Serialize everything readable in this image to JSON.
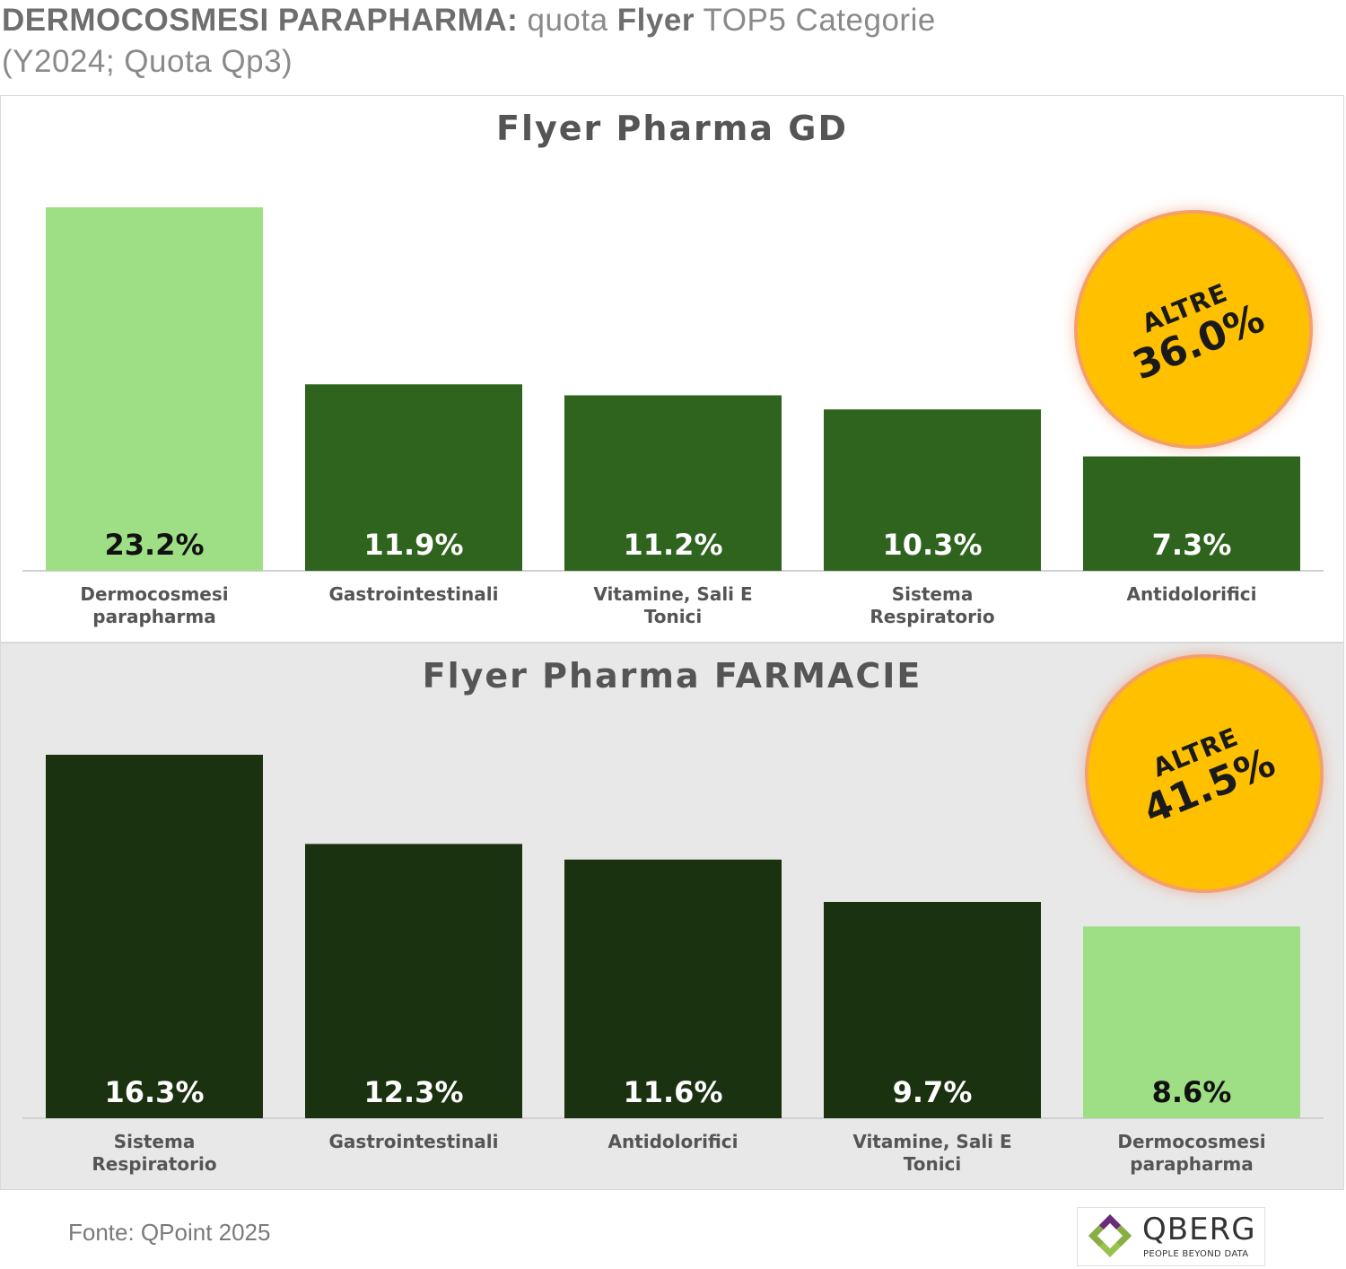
{
  "header": {
    "title_bold": "DERMOCOSMESI PARAPHARMA:",
    "title_mid": " quota ",
    "title_bold2": "Flyer",
    "title_rest": " TOP5 Categorie",
    "subtitle": "(Y2024; Quota Qp3)"
  },
  "colors": {
    "highlight": "#9ede85",
    "gd_bar": "#2e641d",
    "farmacie_bar": "#1a3210",
    "badge": "#ffc000"
  },
  "chart_data": [
    {
      "type": "bar",
      "title": "Flyer Pharma GD",
      "categories": [
        [
          "Dermocosmesi",
          "parapharma"
        ],
        [
          "Gastrointestinali"
        ],
        [
          "Vitamine, Sali E",
          "Tonici"
        ],
        [
          "Sistema",
          "Respiratorio"
        ],
        [
          "Antidolorifici"
        ]
      ],
      "values": [
        23.2,
        11.9,
        11.2,
        10.3,
        7.3
      ],
      "value_labels": [
        "23.2%",
        "11.9%",
        "11.2%",
        "10.3%",
        "7.3%"
      ],
      "highlight_index": 0,
      "ylim": [
        0,
        23.2
      ],
      "badge": {
        "label": "ALTRE",
        "value": "36.0%"
      }
    },
    {
      "type": "bar",
      "title": "Flyer Pharma FARMACIE",
      "categories": [
        [
          "Sistema",
          "Respiratorio"
        ],
        [
          "Gastrointestinali"
        ],
        [
          "Antidolorifici"
        ],
        [
          "Vitamine, Sali E",
          "Tonici"
        ],
        [
          "Dermocosmesi",
          "parapharma"
        ]
      ],
      "values": [
        16.3,
        12.3,
        11.6,
        9.7,
        8.6
      ],
      "value_labels": [
        "16.3%",
        "12.3%",
        "11.6%",
        "9.7%",
        "8.6%"
      ],
      "highlight_index": 4,
      "ylim": [
        0,
        16.3
      ],
      "badge": {
        "label": "ALTRE",
        "value": "41.5%"
      }
    }
  ],
  "footer": {
    "source": "Fonte: QPoint 2025",
    "logo_name": "QBERG",
    "logo_tagline": "PEOPLE BEYOND DATA"
  }
}
